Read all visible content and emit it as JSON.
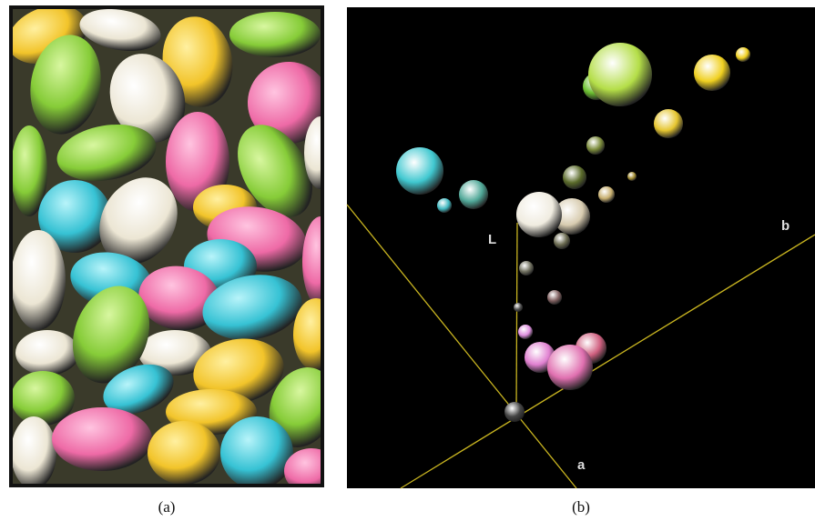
{
  "panel_a": {
    "caption": "(a)"
  },
  "panel_b": {
    "caption": "(b)",
    "axis_labels": [
      "L",
      "a",
      "b"
    ]
  }
}
